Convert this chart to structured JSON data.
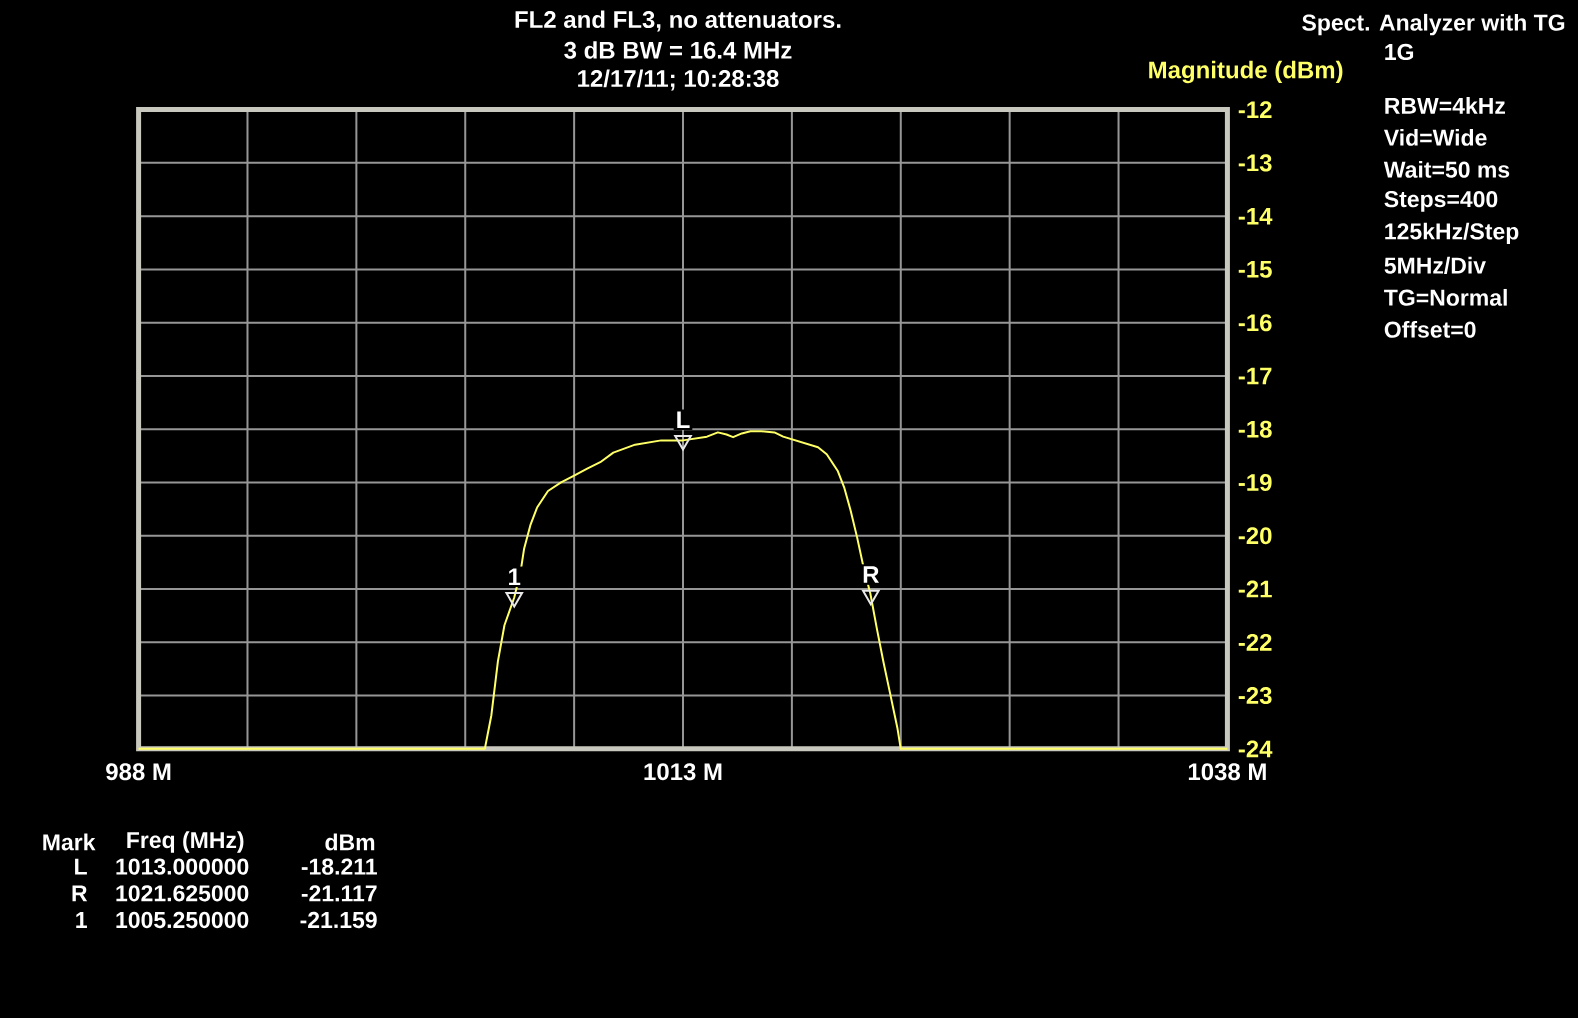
{
  "chart_data": {
    "type": "line",
    "title": "FL2 and FL3, no attenuators.",
    "subtitle": "3 dB BW = 16.4 MHz",
    "ylabel": "Magnitude (dBm)",
    "series": [
      {
        "color": "#ffff66",
        "x": [
          988,
          1003.9,
          1004.2,
          1004.5,
          1004.8,
          1005.25,
          1005.55,
          1005.7,
          1006.0,
          1006.3,
          1006.8,
          1007.4,
          1008.0,
          1008.6,
          1009.2,
          1009.8,
          1010.8,
          1012.0,
          1013.0,
          1014.1,
          1014.6,
          1015.0,
          1015.3,
          1015.7,
          1016.1,
          1016.6,
          1017.2,
          1017.6,
          1018.4,
          1019.2,
          1019.6,
          1020.1,
          1020.4,
          1020.7,
          1021.0,
          1021.3,
          1021.6,
          1021.9,
          1022.2,
          1022.5,
          1022.85,
          1023.0,
          1038
        ],
        "values": [
          -24,
          -24,
          -23.37,
          -22.36,
          -21.68,
          -21.16,
          -20.65,
          -20.25,
          -19.79,
          -19.47,
          -19.16,
          -19.0,
          -18.87,
          -18.74,
          -18.62,
          -18.44,
          -18.29,
          -18.21,
          -18.21,
          -18.14,
          -18.06,
          -18.1,
          -18.15,
          -18.08,
          -18.04,
          -18.04,
          -18.06,
          -18.14,
          -18.24,
          -18.34,
          -18.47,
          -18.78,
          -19.09,
          -19.53,
          -20.04,
          -20.61,
          -21.08,
          -21.74,
          -22.36,
          -22.94,
          -23.62,
          -24,
          -24
        ]
      },
      {
        "type": "scatter",
        "color": "#e8e8e8",
        "marker": "triangle",
        "x": [
          1013,
          1021.625,
          1005.25
        ],
        "values": [
          -18.211,
          -21.117,
          -21.159
        ]
      }
    ],
    "xlim": [
      988,
      1038
    ],
    "ylim": [
      -24,
      -12
    ],
    "xticks": [
      {
        "value": 988,
        "label": "988 M"
      },
      {
        "value": 993,
        "label": null
      },
      {
        "value": 998,
        "label": null
      },
      {
        "value": 1003,
        "label": null
      },
      {
        "value": 1008,
        "label": null
      },
      {
        "value": 1013,
        "label": "1013 M"
      },
      {
        "value": 1018,
        "label": null
      },
      {
        "value": 1023,
        "label": null
      },
      {
        "value": 1028,
        "label": null
      },
      {
        "value": 1033,
        "label": null
      },
      {
        "value": 1038,
        "label": "1038 M"
      }
    ],
    "yticks": [
      -12,
      -13,
      -14,
      -15,
      -16,
      -17,
      -18,
      -19,
      -20,
      -21,
      -22,
      -23,
      -24
    ],
    "grid": true,
    "annotations": [
      {
        "text": "L",
        "x": 1013,
        "y": -18.211
      },
      {
        "text": "R",
        "x": 1021.625,
        "y": -21.117
      },
      {
        "text": "1",
        "x": 1005.25,
        "y": -21.159
      },
      "12/17/11; 10:28:38",
      "Spect. Analyzer with TG",
      "1G",
      "RBW=4kHz",
      "Vid=Wide",
      "Wait=50 ms",
      "Steps=400",
      "125kHz/Step",
      "5MHz/Div",
      "TG=Normal",
      "Offset=0",
      "Mark",
      "Freq (MHz)",
      "dBm",
      "L",
      "1013.000000",
      "-18.211",
      "R",
      "1021.625000",
      "-21.117",
      "1",
      "1005.250000",
      "-21.159"
    ]
  }
}
